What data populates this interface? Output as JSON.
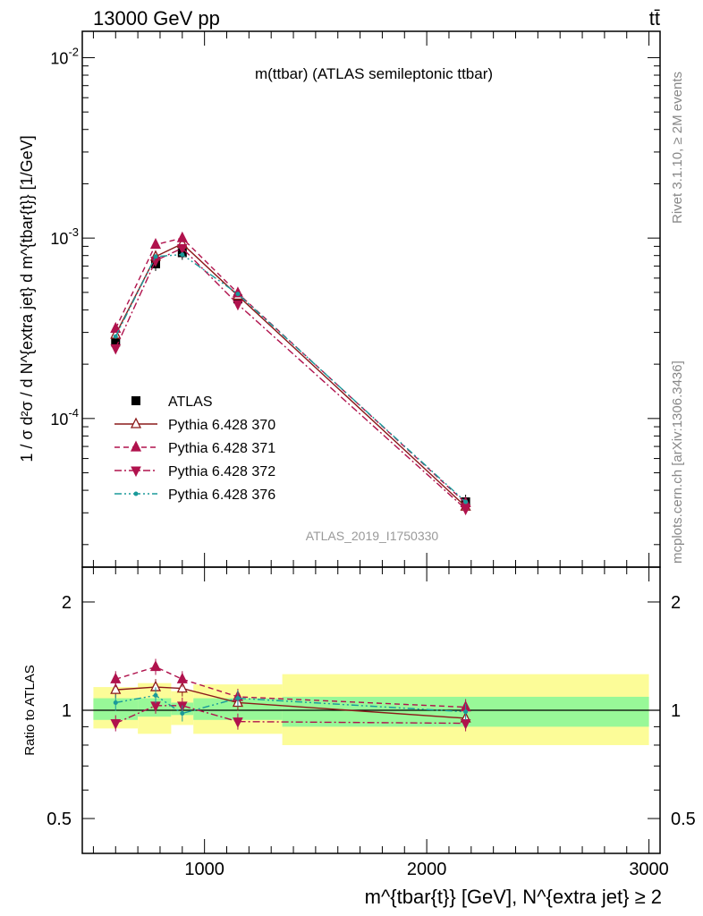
{
  "header": {
    "left": "13000 GeV pp",
    "right": "tt̄"
  },
  "side_labels": {
    "rivet": "Rivet 3.1.10, ≥ 2M events",
    "mcplots": "mcplots.cern.ch [arXiv:1306.3436]"
  },
  "chart_data": [
    {
      "type": "line",
      "title": "m(ttbar) (ATLAS semileptonic ttbar)",
      "watermark": "ATLAS_2019_I1750330",
      "ylabel": "1 / σ d²σ / d N^{extra jet} d m^{tbar{t}} [1/GeV]",
      "xlabel": "",
      "yscale": "log",
      "xlim": [
        450,
        3050
      ],
      "ylim": [
        1.5e-05,
        0.014
      ],
      "y_tick_labels": [
        "10^{-4}",
        "10^{-3}",
        "10^{-2}"
      ],
      "legend_position": "left",
      "x": [
        600,
        780,
        900,
        1150,
        2175
      ],
      "series": [
        {
          "name": "ATLAS",
          "color": "#000000",
          "marker": "square",
          "line": "none",
          "values": [
            0.000265,
            0.00072,
            0.00083,
            0.00046,
            3.45e-05
          ]
        },
        {
          "name": "Pythia 6.428 370",
          "color": "#8b1a1a",
          "marker": "open-triangle-up",
          "line": "solid",
          "values": [
            0.000292,
            0.00079,
            0.00093,
            0.00048,
            3.25e-05
          ]
        },
        {
          "name": "Pythia 6.428 371",
          "color": "#b0124d",
          "marker": "triangle-up",
          "line": "dashed",
          "values": [
            0.000315,
            0.00092,
            0.001,
            0.000495,
            3.4e-05
          ]
        },
        {
          "name": "Pythia 6.428 372",
          "color": "#b0124d",
          "marker": "triangle-down",
          "line": "dashdot",
          "values": [
            0.000245,
            0.00075,
            0.00088,
            0.00043,
            3.15e-05
          ]
        },
        {
          "name": "Pythia 6.428 376",
          "color": "#1a9a9a",
          "marker": "dot",
          "line": "dashdotdot",
          "values": [
            0.000285,
            0.00079,
            0.00081,
            0.00049,
            3.45e-05
          ]
        }
      ]
    },
    {
      "type": "line",
      "ylabel": "Ratio to ATLAS",
      "xlabel": "m^{tbar{t}} [GeV], N^{extra jet} ≥ 2",
      "xlim": [
        450,
        3050
      ],
      "ylim": [
        0.4,
        2.5
      ],
      "y_tick_labels": [
        "0.5",
        "1",
        "2"
      ],
      "x_tick_labels": [
        "1000",
        "2000",
        "3000"
      ],
      "bands": {
        "bins": [
          [
            500,
            700
          ],
          [
            700,
            850
          ],
          [
            850,
            950
          ],
          [
            950,
            1350
          ],
          [
            1350,
            3000
          ]
        ],
        "inner": [
          [
            0.94,
            1.08
          ],
          [
            0.96,
            1.08
          ],
          [
            0.97,
            1.05
          ],
          [
            0.94,
            1.08
          ],
          [
            0.9,
            1.09
          ]
        ],
        "outer": [
          [
            0.89,
            1.16
          ],
          [
            0.86,
            1.19
          ],
          [
            0.91,
            1.13
          ],
          [
            0.86,
            1.18
          ],
          [
            0.8,
            1.26
          ]
        ],
        "inner_color": "#98f898",
        "outer_color": "#fcfc98"
      },
      "x": [
        600,
        780,
        900,
        1150,
        2175
      ],
      "series": [
        {
          "name": "Pythia 6.428 370",
          "color": "#8b1a1a",
          "marker": "open-triangle-up",
          "line": "solid",
          "values": [
            1.14,
            1.16,
            1.15,
            1.05,
            0.95
          ]
        },
        {
          "name": "Pythia 6.428 371",
          "color": "#b0124d",
          "marker": "triangle-up",
          "line": "dashed",
          "values": [
            1.22,
            1.32,
            1.22,
            1.09,
            1.02
          ]
        },
        {
          "name": "Pythia 6.428 372",
          "color": "#b0124d",
          "marker": "triangle-down",
          "line": "dashdot",
          "values": [
            0.92,
            1.03,
            1.03,
            0.93,
            0.92
          ]
        },
        {
          "name": "Pythia 6.428 376",
          "color": "#1a9a9a",
          "marker": "dot",
          "line": "dashdotdot",
          "values": [
            1.05,
            1.1,
            0.98,
            1.08,
            0.99
          ]
        }
      ]
    }
  ]
}
